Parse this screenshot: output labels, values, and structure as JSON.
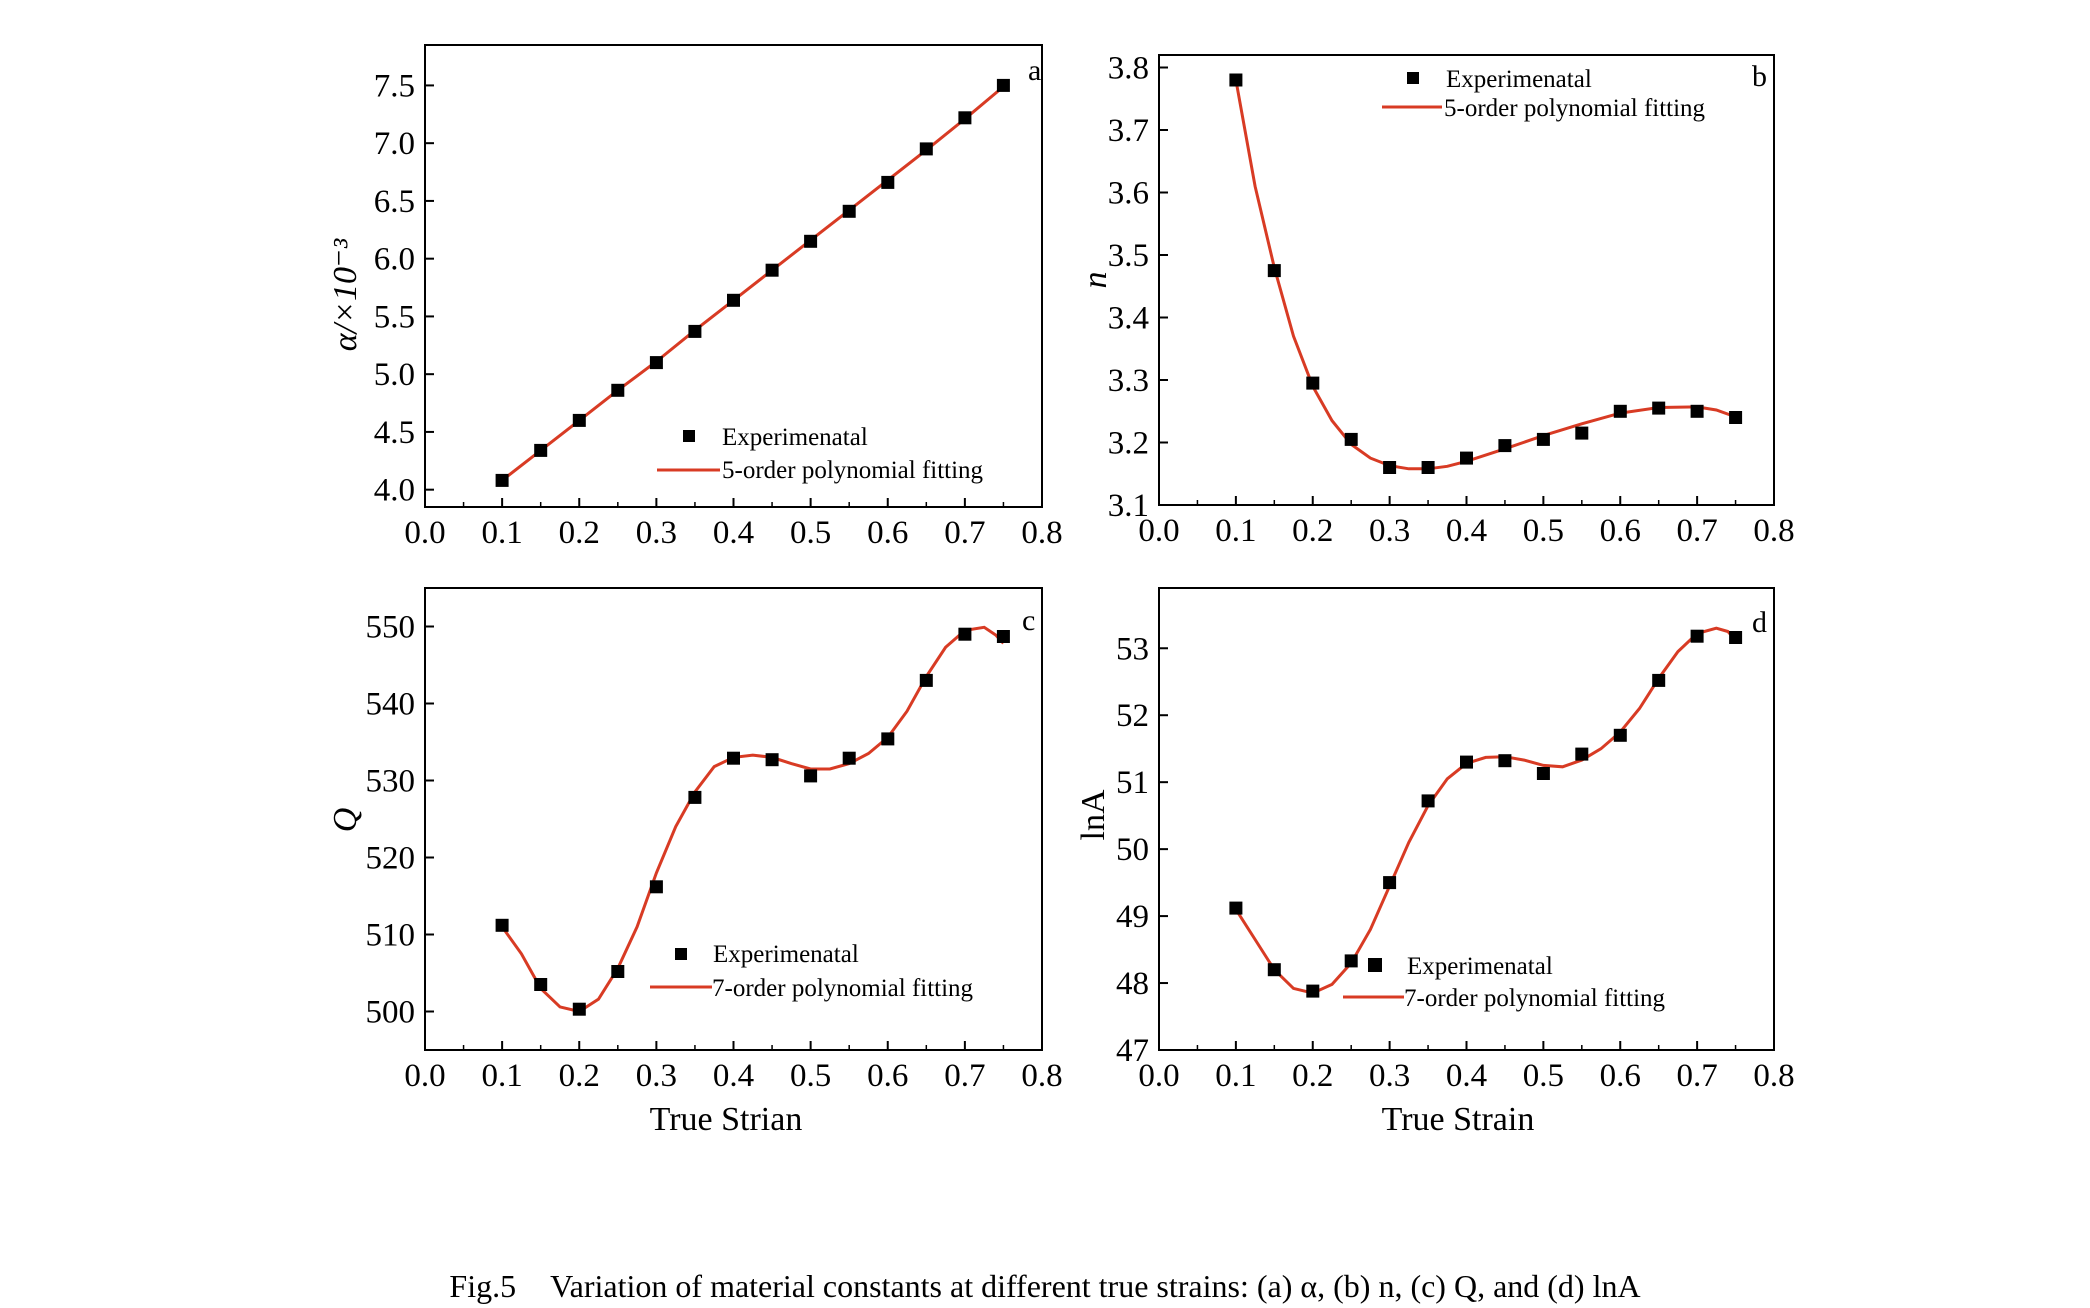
{
  "caption": {
    "number": "Fig.5",
    "text": "Variation of material constants at different true strains: (a) α, (b) n, (c) Q, and (d) lnA"
  },
  "colors": {
    "marker": "#000000",
    "fit_line": "#d83b24",
    "axis": "#000000"
  },
  "chart_data": [
    {
      "panel": "a",
      "type": "scatter",
      "xlabel": "",
      "ylabel": "α/×10⁻³",
      "xlim": [
        0.0,
        0.8
      ],
      "ylim": [
        3.85,
        7.85
      ],
      "xticks": [
        "0.0",
        "0.1",
        "0.2",
        "0.3",
        "0.4",
        "0.5",
        "0.6",
        "0.7",
        "0.8"
      ],
      "yticks": [
        "4.0",
        "4.5",
        "5.0",
        "5.5",
        "6.0",
        "6.5",
        "7.0",
        "7.5"
      ],
      "ytick_values": [
        4.0,
        4.5,
        5.0,
        5.5,
        6.0,
        6.5,
        7.0,
        7.5
      ],
      "legend_position": "lower-right",
      "series": [
        {
          "name": "Experimenatal",
          "kind": "scatter",
          "x": [
            0.1,
            0.15,
            0.2,
            0.25,
            0.3,
            0.35,
            0.4,
            0.45,
            0.5,
            0.55,
            0.6,
            0.65,
            0.7,
            0.75
          ],
          "y": [
            4.08,
            4.34,
            4.6,
            4.86,
            5.1,
            5.37,
            5.64,
            5.9,
            6.15,
            6.41,
            6.66,
            6.95,
            7.22,
            7.5
          ]
        },
        {
          "name": "5-order polynomial fitting",
          "kind": "line",
          "x": [
            0.1,
            0.15,
            0.2,
            0.25,
            0.3,
            0.35,
            0.4,
            0.45,
            0.5,
            0.55,
            0.6,
            0.65,
            0.7,
            0.75
          ],
          "y": [
            4.08,
            4.34,
            4.6,
            4.86,
            5.11,
            5.38,
            5.64,
            5.9,
            6.16,
            6.42,
            6.68,
            6.94,
            7.21,
            7.49
          ]
        }
      ]
    },
    {
      "panel": "b",
      "type": "scatter",
      "xlabel": "",
      "ylabel": "n",
      "xlim": [
        0.0,
        0.8
      ],
      "ylim": [
        3.1,
        3.82
      ],
      "xticks": [
        "0.0",
        "0.1",
        "0.2",
        "0.3",
        "0.4",
        "0.5",
        "0.6",
        "0.7",
        "0.8"
      ],
      "yticks": [
        "3.1",
        "3.2",
        "3.3",
        "3.4",
        "3.5",
        "3.6",
        "3.7",
        "3.8"
      ],
      "ytick_values": [
        3.1,
        3.2,
        3.3,
        3.4,
        3.5,
        3.6,
        3.7,
        3.8
      ],
      "legend_position": "top-center",
      "series": [
        {
          "name": "Experimenatal",
          "kind": "scatter",
          "x": [
            0.1,
            0.15,
            0.2,
            0.25,
            0.3,
            0.35,
            0.4,
            0.45,
            0.5,
            0.55,
            0.6,
            0.65,
            0.7,
            0.75
          ],
          "y": [
            3.78,
            3.475,
            3.295,
            3.205,
            3.16,
            3.16,
            3.175,
            3.195,
            3.205,
            3.215,
            3.25,
            3.255,
            3.25,
            3.24
          ]
        },
        {
          "name": "5-order polynomial fitting",
          "kind": "line",
          "x": [
            0.1,
            0.125,
            0.15,
            0.175,
            0.2,
            0.225,
            0.25,
            0.275,
            0.3,
            0.325,
            0.35,
            0.375,
            0.4,
            0.45,
            0.5,
            0.55,
            0.6,
            0.65,
            0.7,
            0.725,
            0.75
          ],
          "y": [
            3.78,
            3.61,
            3.48,
            3.37,
            3.29,
            3.235,
            3.197,
            3.175,
            3.163,
            3.158,
            3.158,
            3.162,
            3.17,
            3.19,
            3.211,
            3.23,
            3.247,
            3.256,
            3.257,
            3.252,
            3.241
          ]
        }
      ]
    },
    {
      "panel": "c",
      "type": "scatter",
      "xlabel": "True Strian",
      "ylabel": "Q",
      "xlim": [
        0.0,
        0.8
      ],
      "ylim": [
        495,
        555
      ],
      "xticks": [
        "0.0",
        "0.1",
        "0.2",
        "0.3",
        "0.4",
        "0.5",
        "0.6",
        "0.7",
        "0.8"
      ],
      "yticks": [
        "500",
        "510",
        "520",
        "530",
        "540",
        "550"
      ],
      "ytick_values": [
        500,
        510,
        520,
        530,
        540,
        550
      ],
      "legend_position": "lower-right",
      "series": [
        {
          "name": "Experimenatal",
          "kind": "scatter",
          "x": [
            0.1,
            0.15,
            0.2,
            0.25,
            0.3,
            0.35,
            0.4,
            0.45,
            0.5,
            0.55,
            0.6,
            0.65,
            0.7,
            0.75
          ],
          "y": [
            511.2,
            503.5,
            500.3,
            505.2,
            516.2,
            527.8,
            532.9,
            532.7,
            530.6,
            532.9,
            535.4,
            543.0,
            549.0,
            548.7
          ]
        },
        {
          "name": "7-order polynomial fitting",
          "kind": "line",
          "x": [
            0.1,
            0.125,
            0.15,
            0.175,
            0.2,
            0.225,
            0.25,
            0.275,
            0.3,
            0.325,
            0.35,
            0.375,
            0.4,
            0.425,
            0.45,
            0.475,
            0.5,
            0.525,
            0.55,
            0.575,
            0.6,
            0.625,
            0.65,
            0.675,
            0.7,
            0.725,
            0.74,
            0.75
          ],
          "y": [
            511.0,
            507.5,
            503.0,
            500.6,
            500.0,
            501.6,
            505.6,
            511.0,
            518.0,
            524.0,
            528.5,
            531.8,
            533.0,
            533.3,
            533.0,
            532.2,
            531.5,
            531.5,
            532.2,
            533.5,
            535.6,
            539.0,
            543.5,
            547.3,
            549.5,
            549.9,
            548.9,
            547.8
          ]
        }
      ]
    },
    {
      "panel": "d",
      "type": "scatter",
      "xlabel": "True Strain",
      "ylabel": "lnA",
      "xlim": [
        0.0,
        0.8
      ],
      "ylim": [
        47,
        53.9
      ],
      "xticks": [
        "0.0",
        "0.1",
        "0.2",
        "0.3",
        "0.4",
        "0.5",
        "0.6",
        "0.7",
        "0.8"
      ],
      "yticks": [
        "47",
        "48",
        "49",
        "50",
        "51",
        "52",
        "53"
      ],
      "ytick_values": [
        47,
        48,
        49,
        50,
        51,
        52,
        53
      ],
      "legend_position": "lower-right",
      "series": [
        {
          "name": "Experimenatal",
          "kind": "scatter",
          "x": [
            0.1,
            0.15,
            0.2,
            0.25,
            0.3,
            0.35,
            0.4,
            0.45,
            0.5,
            0.55,
            0.6,
            0.65,
            0.7,
            0.75
          ],
          "y": [
            49.12,
            48.2,
            47.88,
            48.33,
            49.5,
            50.72,
            51.3,
            51.32,
            51.13,
            51.42,
            51.7,
            52.52,
            53.18,
            53.16
          ]
        },
        {
          "name": "7-order polynomial fitting",
          "kind": "line",
          "x": [
            0.1,
            0.125,
            0.15,
            0.175,
            0.2,
            0.225,
            0.25,
            0.275,
            0.3,
            0.325,
            0.35,
            0.375,
            0.4,
            0.425,
            0.45,
            0.475,
            0.5,
            0.525,
            0.55,
            0.575,
            0.6,
            0.625,
            0.65,
            0.675,
            0.7,
            0.725,
            0.74,
            0.75
          ],
          "y": [
            49.1,
            48.65,
            48.2,
            47.92,
            47.85,
            47.98,
            48.3,
            48.8,
            49.45,
            50.1,
            50.65,
            51.05,
            51.28,
            51.37,
            51.38,
            51.33,
            51.25,
            51.23,
            51.33,
            51.5,
            51.75,
            52.1,
            52.55,
            52.95,
            53.22,
            53.3,
            53.25,
            53.12
          ]
        }
      ]
    }
  ]
}
